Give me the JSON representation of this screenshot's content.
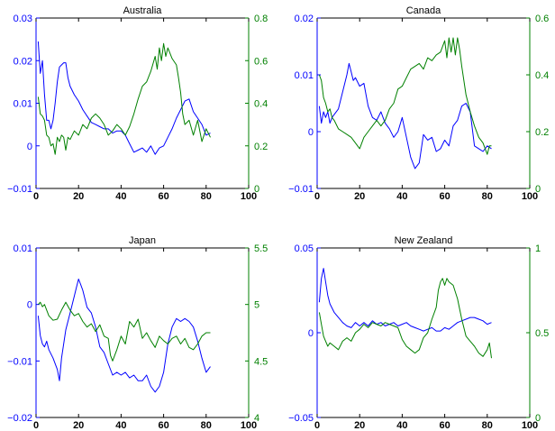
{
  "figure": {
    "left_axis_color": "#0000ff",
    "right_axis_color": "#008000",
    "frame_color": "#000000"
  },
  "chart_data": [
    {
      "type": "line",
      "title": "Australia",
      "xlim": [
        0,
        100
      ],
      "xticks": [
        0,
        20,
        40,
        60,
        80,
        100
      ],
      "xtick_labels": [
        "0",
        "20",
        "40",
        "60",
        "80",
        "100"
      ],
      "left_ylim": [
        -0.01,
        0.03
      ],
      "left_yticks": [
        -0.01,
        0,
        0.01,
        0.02,
        0.03
      ],
      "left_ytick_labels": [
        "−0.01",
        "0",
        "0.01",
        "0.02",
        "0.03"
      ],
      "right_ylim": [
        0,
        0.8
      ],
      "right_yticks": [
        0,
        0.2,
        0.4,
        0.6,
        0.8
      ],
      "right_ytick_labels": [
        "0",
        "0.2",
        "0.4",
        "0.6",
        "0.8"
      ],
      "series": [
        {
          "axis": "left",
          "color": "#0000ff",
          "x": [
            1,
            2,
            3,
            4,
            5,
            6,
            7,
            8,
            9,
            10,
            11,
            12,
            13,
            14,
            15,
            16,
            18,
            20,
            22,
            24,
            26,
            28,
            30,
            32,
            34,
            36,
            38,
            40,
            42,
            44,
            46,
            48,
            50,
            52,
            54,
            56,
            58,
            60,
            62,
            64,
            66,
            68,
            70,
            72,
            74,
            76,
            78,
            80,
            82
          ],
          "y": [
            0.0245,
            0.017,
            0.02,
            0.012,
            0.006,
            0.006,
            0.004,
            0.006,
            0.01,
            0.015,
            0.0185,
            0.019,
            0.0195,
            0.0195,
            0.016,
            0.014,
            0.012,
            0.0105,
            0.0085,
            0.007,
            0.0055,
            0.005,
            0.0045,
            0.004,
            0.004,
            0.003,
            0.0035,
            0.0035,
            0.0025,
            0.0005,
            -0.0015,
            -0.001,
            -0.0005,
            -0.0015,
            0.0,
            -0.002,
            -0.0005,
            0.0,
            0.002,
            0.004,
            0.0065,
            0.0085,
            0.0105,
            0.011,
            0.008,
            0.0065,
            0.005,
            0.0025,
            0.003
          ]
        },
        {
          "axis": "right",
          "color": "#008000",
          "x": [
            1,
            2,
            3,
            4,
            5,
            6,
            7,
            8,
            9,
            10,
            11,
            12,
            13,
            14,
            15,
            16,
            18,
            20,
            22,
            24,
            26,
            28,
            30,
            32,
            34,
            36,
            38,
            40,
            42,
            44,
            46,
            48,
            50,
            52,
            54,
            56,
            57,
            58,
            59,
            60,
            61,
            62,
            64,
            66,
            67,
            68,
            69,
            70,
            72,
            74,
            76,
            78,
            80,
            82
          ],
          "y": [
            0.43,
            0.35,
            0.34,
            0.32,
            0.25,
            0.24,
            0.2,
            0.21,
            0.16,
            0.24,
            0.22,
            0.25,
            0.24,
            0.18,
            0.24,
            0.23,
            0.27,
            0.25,
            0.3,
            0.28,
            0.33,
            0.35,
            0.33,
            0.3,
            0.25,
            0.27,
            0.3,
            0.28,
            0.25,
            0.29,
            0.35,
            0.42,
            0.48,
            0.5,
            0.55,
            0.62,
            0.56,
            0.66,
            0.6,
            0.68,
            0.62,
            0.66,
            0.61,
            0.58,
            0.52,
            0.45,
            0.35,
            0.3,
            0.32,
            0.25,
            0.32,
            0.22,
            0.28,
            0.24
          ]
        }
      ]
    },
    {
      "type": "line",
      "title": "Canada",
      "xlim": [
        0,
        100
      ],
      "xticks": [
        0,
        20,
        40,
        60,
        80,
        100
      ],
      "xtick_labels": [
        "0",
        "20",
        "40",
        "60",
        "80",
        "100"
      ],
      "left_ylim": [
        -0.01,
        0.02
      ],
      "left_yticks": [
        -0.01,
        0,
        0.01,
        0.02
      ],
      "left_ytick_labels": [
        "−0.01",
        "0",
        "0.01",
        "0.02"
      ],
      "right_ylim": [
        0,
        0.6
      ],
      "right_yticks": [
        0,
        0.2,
        0.4,
        0.6
      ],
      "right_ytick_labels": [
        "0",
        "0.2",
        "0.4",
        "0.6"
      ],
      "series": [
        {
          "axis": "left",
          "color": "#0000ff",
          "x": [
            1,
            2,
            3,
            4,
            5,
            6,
            7,
            8,
            10,
            12,
            14,
            15,
            16,
            17,
            18,
            20,
            22,
            24,
            26,
            28,
            30,
            32,
            34,
            36,
            38,
            40,
            42,
            44,
            46,
            48,
            50,
            52,
            54,
            56,
            58,
            60,
            62,
            64,
            66,
            68,
            70,
            72,
            74,
            76,
            78,
            80,
            82
          ],
          "y": [
            0.0045,
            0.0015,
            0.0035,
            0.0025,
            0.0035,
            0.0015,
            0.0025,
            0.003,
            0.004,
            0.007,
            0.01,
            0.012,
            0.0105,
            0.009,
            0.0095,
            0.008,
            0.0085,
            0.0045,
            0.0025,
            0.002,
            0.0035,
            0.0015,
            0.0005,
            -0.001,
            0.0,
            0.0025,
            -0.001,
            -0.0045,
            -0.0065,
            -0.0055,
            -0.0005,
            -0.0015,
            -0.001,
            -0.0035,
            -0.003,
            -0.0015,
            -0.0025,
            0.001,
            0.002,
            0.0045,
            0.005,
            0.0035,
            -0.0025,
            -0.003,
            -0.0035,
            -0.0025,
            -0.003
          ]
        },
        {
          "axis": "right",
          "color": "#008000",
          "x": [
            1,
            2,
            3,
            4,
            5,
            6,
            7,
            8,
            10,
            12,
            14,
            16,
            18,
            20,
            22,
            24,
            26,
            28,
            30,
            32,
            34,
            36,
            38,
            40,
            42,
            44,
            46,
            48,
            50,
            52,
            54,
            56,
            58,
            60,
            61,
            62,
            63,
            64,
            65,
            66,
            67,
            68,
            70,
            72,
            74,
            76,
            78,
            80,
            81,
            82
          ],
          "y": [
            0.4,
            0.38,
            0.32,
            0.3,
            0.27,
            0.28,
            0.25,
            0.24,
            0.21,
            0.2,
            0.19,
            0.18,
            0.16,
            0.14,
            0.18,
            0.2,
            0.22,
            0.24,
            0.22,
            0.24,
            0.28,
            0.3,
            0.35,
            0.36,
            0.39,
            0.42,
            0.43,
            0.44,
            0.42,
            0.46,
            0.45,
            0.47,
            0.48,
            0.52,
            0.46,
            0.53,
            0.48,
            0.53,
            0.47,
            0.53,
            0.49,
            0.43,
            0.33,
            0.27,
            0.22,
            0.18,
            0.16,
            0.12,
            0.15,
            0.15
          ]
        }
      ]
    },
    {
      "type": "line",
      "title": "Japan",
      "xlim": [
        0,
        100
      ],
      "xticks": [
        0,
        20,
        40,
        60,
        80,
        100
      ],
      "xtick_labels": [
        "0",
        "20",
        "40",
        "60",
        "80",
        "100"
      ],
      "left_ylim": [
        -0.02,
        0.01
      ],
      "left_yticks": [
        -0.02,
        -0.01,
        0,
        0.01
      ],
      "left_ytick_labels": [
        "−0.02",
        "−0.01",
        "0",
        "0.01"
      ],
      "right_ylim": [
        4,
        5.5
      ],
      "right_yticks": [
        4,
        4.5,
        5,
        5.5
      ],
      "right_ytick_labels": [
        "4",
        "4.5",
        "5",
        "5.5"
      ],
      "series": [
        {
          "axis": "left",
          "color": "#0000ff",
          "x": [
            1,
            2,
            3,
            4,
            5,
            6,
            8,
            10,
            11,
            12,
            14,
            16,
            18,
            19,
            20,
            21,
            22,
            24,
            26,
            28,
            30,
            32,
            34,
            36,
            38,
            40,
            42,
            44,
            46,
            48,
            50,
            52,
            54,
            56,
            58,
            60,
            62,
            64,
            66,
            68,
            70,
            72,
            74,
            76,
            78,
            80,
            82
          ],
          "y": [
            -0.002,
            -0.0055,
            -0.007,
            -0.0075,
            -0.0065,
            -0.008,
            -0.0095,
            -0.0115,
            -0.0135,
            -0.0095,
            -0.0045,
            -0.0015,
            0.0015,
            0.003,
            0.0045,
            0.0035,
            0.0025,
            -0.0005,
            -0.0015,
            -0.004,
            -0.0075,
            -0.0085,
            -0.0105,
            -0.0125,
            -0.012,
            -0.0125,
            -0.012,
            -0.013,
            -0.0125,
            -0.0135,
            -0.0135,
            -0.0125,
            -0.0145,
            -0.0155,
            -0.0145,
            -0.012,
            -0.007,
            -0.004,
            -0.0025,
            -0.003,
            -0.0025,
            -0.003,
            -0.004,
            -0.0065,
            -0.0095,
            -0.012,
            -0.011
          ]
        },
        {
          "axis": "right",
          "color": "#008000",
          "x": [
            1,
            2,
            3,
            4,
            5,
            6,
            8,
            10,
            12,
            14,
            16,
            18,
            20,
            22,
            24,
            26,
            28,
            30,
            32,
            34,
            35,
            36,
            38,
            40,
            42,
            44,
            46,
            48,
            50,
            52,
            54,
            56,
            58,
            60,
            62,
            64,
            66,
            68,
            70,
            72,
            74,
            76,
            78,
            80,
            82
          ],
          "y": [
            5.0,
            5.02,
            4.98,
            5.0,
            4.95,
            4.9,
            4.86,
            4.87,
            4.95,
            5.02,
            4.95,
            4.9,
            4.92,
            4.85,
            4.8,
            4.83,
            4.76,
            4.82,
            4.72,
            4.7,
            4.55,
            4.5,
            4.6,
            4.72,
            4.65,
            4.85,
            4.8,
            4.87,
            4.7,
            4.75,
            4.68,
            4.62,
            4.72,
            4.68,
            4.65,
            4.7,
            4.72,
            4.65,
            4.7,
            4.62,
            4.6,
            4.65,
            4.72,
            4.75,
            4.75
          ]
        }
      ]
    },
    {
      "type": "line",
      "title": "New Zealand",
      "xlim": [
        0,
        100
      ],
      "xticks": [
        0,
        20,
        40,
        60,
        80,
        100
      ],
      "xtick_labels": [
        "0",
        "20",
        "40",
        "60",
        "80",
        "100"
      ],
      "left_ylim": [
        -0.05,
        0.05
      ],
      "left_yticks": [
        -0.05,
        0,
        0.05
      ],
      "left_ytick_labels": [
        "−0.05",
        "0",
        "0.05"
      ],
      "right_ylim": [
        0,
        1
      ],
      "right_yticks": [
        0,
        0.5,
        1
      ],
      "right_ytick_labels": [
        "0",
        "0.5",
        "1"
      ],
      "series": [
        {
          "axis": "left",
          "color": "#0000ff",
          "x": [
            1,
            2,
            3,
            4,
            5,
            6,
            8,
            10,
            12,
            14,
            16,
            18,
            20,
            22,
            24,
            26,
            28,
            30,
            32,
            34,
            36,
            38,
            40,
            42,
            44,
            46,
            48,
            50,
            52,
            54,
            56,
            58,
            60,
            62,
            64,
            66,
            68,
            70,
            72,
            74,
            76,
            78,
            80,
            82
          ],
          "y": [
            0.018,
            0.032,
            0.038,
            0.03,
            0.022,
            0.017,
            0.012,
            0.009,
            0.006,
            0.004,
            0.003,
            0.006,
            0.004,
            0.006,
            0.004,
            0.007,
            0.005,
            0.006,
            0.004,
            0.005,
            0.006,
            0.004,
            0.005,
            0.006,
            0.004,
            0.003,
            0.002,
            0.001,
            0.002,
            0.003,
            0.001,
            0.001,
            0.003,
            0.002,
            0.004,
            0.006,
            0.007,
            0.008,
            0.009,
            0.009,
            0.008,
            0.007,
            0.005,
            0.006
          ]
        },
        {
          "axis": "right",
          "color": "#008000",
          "x": [
            1,
            2,
            3,
            4,
            5,
            6,
            8,
            10,
            12,
            14,
            16,
            18,
            20,
            22,
            24,
            26,
            28,
            30,
            32,
            34,
            36,
            38,
            40,
            42,
            44,
            46,
            48,
            50,
            52,
            54,
            56,
            57,
            58,
            59,
            60,
            61,
            62,
            64,
            66,
            68,
            70,
            72,
            74,
            76,
            78,
            80,
            81,
            82
          ],
          "y": [
            0.62,
            0.55,
            0.48,
            0.45,
            0.42,
            0.44,
            0.42,
            0.4,
            0.45,
            0.47,
            0.45,
            0.5,
            0.52,
            0.55,
            0.53,
            0.56,
            0.55,
            0.54,
            0.56,
            0.55,
            0.54,
            0.53,
            0.46,
            0.42,
            0.4,
            0.38,
            0.4,
            0.47,
            0.5,
            0.58,
            0.65,
            0.75,
            0.8,
            0.82,
            0.78,
            0.82,
            0.8,
            0.78,
            0.7,
            0.58,
            0.48,
            0.45,
            0.42,
            0.38,
            0.36,
            0.4,
            0.44,
            0.35
          ]
        }
      ]
    }
  ]
}
